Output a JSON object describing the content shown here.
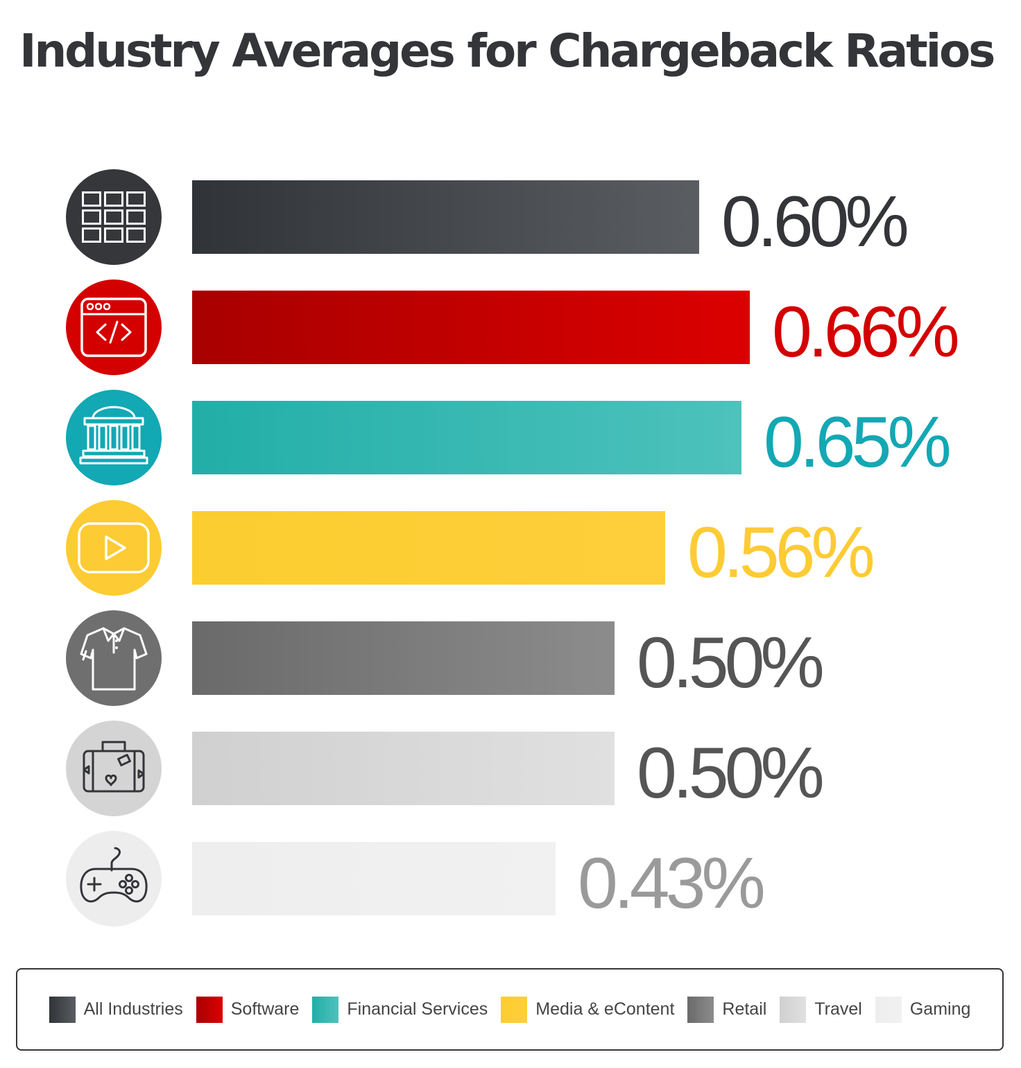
{
  "chart_data": {
    "type": "bar",
    "orientation": "horizontal",
    "title": "Industry Averages for Chargeback Ratios",
    "xlabel": "",
    "ylabel": "",
    "xlim": [
      0,
      0.66
    ],
    "grid": false,
    "legend_placement": "bottom",
    "categories": [
      "All Industries",
      "Software",
      "Financial Services",
      "Media & eContent",
      "Retail",
      "Travel",
      "Gaming"
    ],
    "values": [
      0.6,
      0.66,
      0.65,
      0.56,
      0.5,
      0.5,
      0.43
    ],
    "value_labels": [
      "0.60%",
      "0.66%",
      "0.65%",
      "0.56%",
      "0.50%",
      "0.50%",
      "0.43%"
    ],
    "icons": [
      "grid-icon",
      "code-window-icon",
      "bank-icon",
      "video-play-icon",
      "shirt-icon",
      "suitcase-icon",
      "gamepad-icon"
    ],
    "colors": [
      "#3a3d42",
      "#c8000f",
      "#2fb3ac",
      "#fecb33",
      "#7b7b7b",
      "#d6d6d6",
      "#efefef"
    ],
    "gradient_start": [
      "#303338",
      "#a80000",
      "#22aea8",
      "#fccd2f",
      "#6a6a6a",
      "#d0d0d0",
      "#eeeeee"
    ],
    "gradient_end": [
      "#5a5d62",
      "#dc0000",
      "#4ec2bc",
      "#fecf3b",
      "#8c8c8c",
      "#e0e0e0",
      "#f1f1f1"
    ],
    "icon_colors": [
      "#35373b",
      "#d40000",
      "#12a8b4",
      "#fdcb33",
      "#6f6f6f",
      "#d4d4d4",
      "#ededed"
    ],
    "icon_stroke_colors": [
      "#ffffff",
      "#ffffff",
      "#ffffff",
      "#ffffff",
      "#ffffff",
      "#333539",
      "#333539"
    ],
    "label_colors": [
      "#333539",
      "#d40000",
      "#12a8b4",
      "#fdcb33",
      "#555555",
      "#555555",
      "#9a9a9a"
    ]
  },
  "legend": {
    "items": [
      {
        "label": "All Industries",
        "color": "#3f4247"
      },
      {
        "label": "Software",
        "color": "#c8000f"
      },
      {
        "label": "Financial Services",
        "color": "#2fb3ac"
      },
      {
        "label": "Media & eContent",
        "color": "#fecb33"
      },
      {
        "label": "Retail",
        "color": "#7b7b7b"
      },
      {
        "label": "Travel",
        "color": "#d6d6d6"
      },
      {
        "label": "Gaming",
        "color": "#efefef"
      }
    ]
  }
}
